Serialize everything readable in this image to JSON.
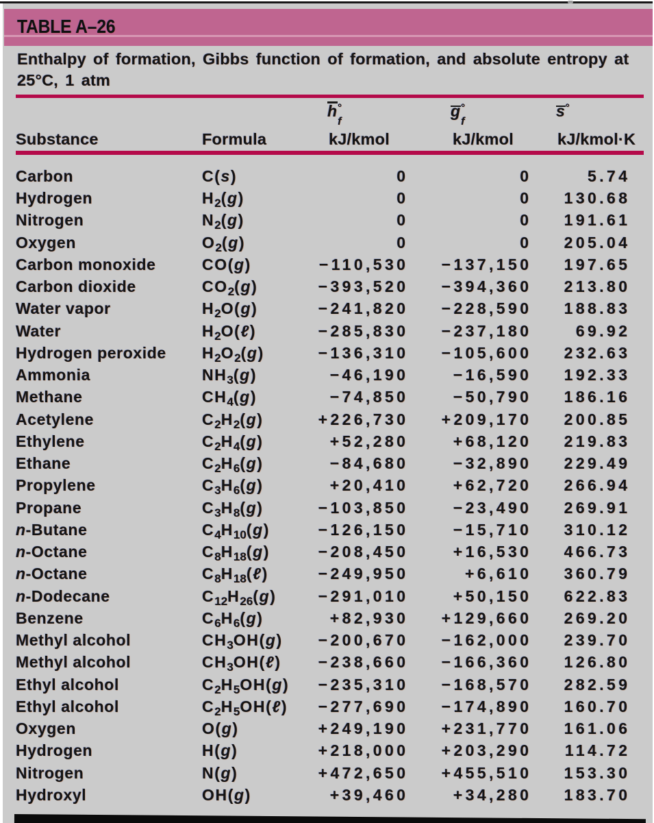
{
  "header": {
    "table_label": "TABLE A–26",
    "caption_line1": "Enthalpy of formation, Gibbs function of formation, and absolute entropy at",
    "caption_line2": "25°C, 1 atm"
  },
  "columns": {
    "substance": {
      "label": "Substance"
    },
    "formula": {
      "label": "Formula"
    },
    "hf": {
      "letter": "h",
      "overbar": true,
      "sup": "°",
      "sub": "f",
      "unit": "kJ/kmol"
    },
    "gf": {
      "letter": "g",
      "overbar": true,
      "sup": "°",
      "sub": "f",
      "unit": "kJ/kmol"
    },
    "s": {
      "letter": "s",
      "overbar": true,
      "sup": "°",
      "sub": "",
      "unit": "kJ/kmol·K"
    }
  },
  "rows": [
    {
      "substance": "Carbon",
      "formula": "C(s)",
      "hf": "0",
      "gf": "0",
      "s": "5.74"
    },
    {
      "substance": "Hydrogen",
      "formula": "H2(g)",
      "hf": "0",
      "gf": "0",
      "s": "130.68"
    },
    {
      "substance": "Nitrogen",
      "formula": "N2(g)",
      "hf": "0",
      "gf": "0",
      "s": "191.61"
    },
    {
      "substance": "Oxygen",
      "formula": "O2(g)",
      "hf": "0",
      "gf": "0",
      "s": "205.04"
    },
    {
      "substance": "Carbon monoxide",
      "formula": "CO(g)",
      "hf": "−110,530",
      "gf": "−137,150",
      "s": "197.65"
    },
    {
      "substance": "Carbon dioxide",
      "formula": "CO2(g)",
      "hf": "−393,520",
      "gf": "−394,360",
      "s": "213.80"
    },
    {
      "substance": "Water vapor",
      "formula": "H2O(g)",
      "hf": "−241,820",
      "gf": "−228,590",
      "s": "188.83"
    },
    {
      "substance": "Water",
      "formula": "H2O(ℓ)",
      "hf": "−285,830",
      "gf": "−237,180",
      "s": "69.92"
    },
    {
      "substance": "Hydrogen peroxide",
      "formula": "H2O2(g)",
      "hf": "−136,310",
      "gf": "−105,600",
      "s": "232.63"
    },
    {
      "substance": "Ammonia",
      "formula": "NH3(g)",
      "hf": "−46,190",
      "gf": "−16,590",
      "s": "192.33"
    },
    {
      "substance": "Methane",
      "formula": "CH4(g)",
      "hf": "−74,850",
      "gf": "−50,790",
      "s": "186.16"
    },
    {
      "substance": "Acetylene",
      "formula": "C2H2(g)",
      "hf": "+226,730",
      "gf": "+209,170",
      "s": "200.85"
    },
    {
      "substance": "Ethylene",
      "formula": "C2H4(g)",
      "hf": "+52,280",
      "gf": "+68,120",
      "s": "219.83"
    },
    {
      "substance": "Ethane",
      "formula": "C2H6(g)",
      "hf": "−84,680",
      "gf": "−32,890",
      "s": "229.49"
    },
    {
      "substance": "Propylene",
      "formula": "C3H6(g)",
      "hf": "+20,410",
      "gf": "+62,720",
      "s": "266.94"
    },
    {
      "substance": "Propane",
      "formula": "C3H8(g)",
      "hf": "−103,850",
      "gf": "−23,490",
      "s": "269.91"
    },
    {
      "substance": "n-Butane",
      "formula": "C4H10(g)",
      "hf": "−126,150",
      "gf": "−15,710",
      "s": "310.12"
    },
    {
      "substance": "n-Octane",
      "formula": "C8H18(g)",
      "hf": "−208,450",
      "gf": "+16,530",
      "s": "466.73"
    },
    {
      "substance": "n-Octane",
      "formula": "C8H18(ℓ)",
      "hf": "−249,950",
      "gf": "+6,610",
      "s": "360.79"
    },
    {
      "substance": "n-Dodecane",
      "formula": "C12H26(g)",
      "hf": "−291,010",
      "gf": "+50,150",
      "s": "622.83"
    },
    {
      "substance": "Benzene",
      "formula": "C6H6(g)",
      "hf": "+82,930",
      "gf": "+129,660",
      "s": "269.20"
    },
    {
      "substance": "Methyl alcohol",
      "formula": "CH3OH(g)",
      "hf": "−200,670",
      "gf": "−162,000",
      "s": "239.70"
    },
    {
      "substance": "Methyl alcohol",
      "formula": "CH3OH(ℓ)",
      "hf": "−238,660",
      "gf": "−166,360",
      "s": "126.80"
    },
    {
      "substance": "Ethyl alcohol",
      "formula": "C2H5OH(g)",
      "hf": "−235,310",
      "gf": "−168,570",
      "s": "282.59"
    },
    {
      "substance": "Ethyl alcohol",
      "formula": "C2H5OH(ℓ)",
      "hf": "−277,690",
      "gf": "−174,890",
      "s": "160.70"
    },
    {
      "substance": "Oxygen",
      "formula": "O(g)",
      "hf": "+249,190",
      "gf": "+231,770",
      "s": "161.06"
    },
    {
      "substance": "Hydrogen",
      "formula": "H(g)",
      "hf": "+218,000",
      "gf": "+203,290",
      "s": "114.72"
    },
    {
      "substance": "Nitrogen",
      "formula": "N(g)",
      "hf": "+472,650",
      "gf": "+455,510",
      "s": "153.30"
    },
    {
      "substance": "Hydroxyl",
      "formula": "OH(g)",
      "hf": "+39,460",
      "gf": "+34,280",
      "s": "183.70"
    }
  ],
  "theme": {
    "bar_pink": "#bf6590",
    "rule_crimson": "#b40a4a",
    "paper_gray": "#cbcbcb",
    "ink": "#141414"
  }
}
